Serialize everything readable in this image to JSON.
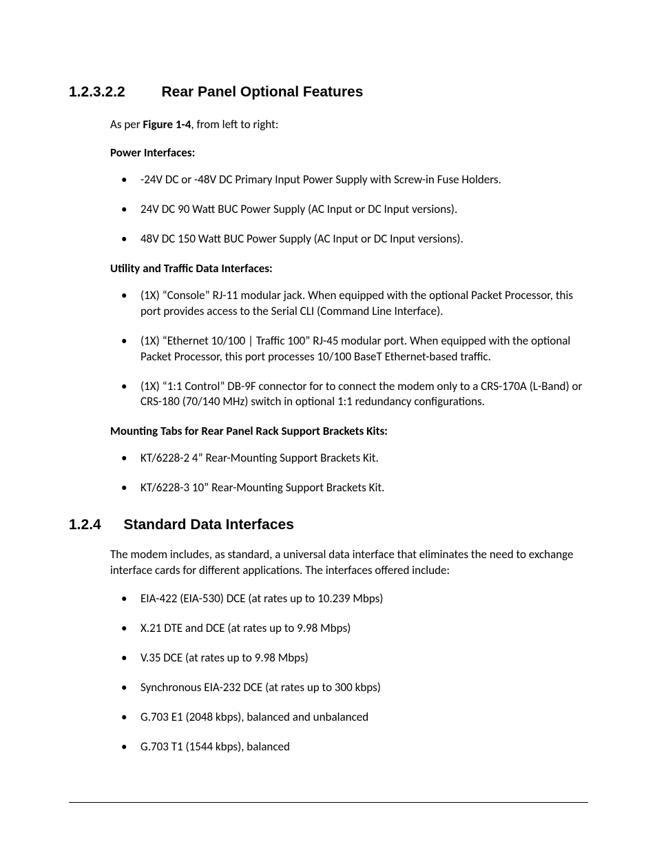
{
  "section1": {
    "number": "1.2.3.2.2",
    "title": "Rear Panel Optional Features",
    "intro_pre": "As per ",
    "intro_bold": "Figure 1-4",
    "intro_post": ", from left to right:",
    "sub1": {
      "heading": "Power Interfaces:",
      "items": [
        "-24V DC or -48V DC Primary Input Power Supply with Screw-in Fuse Holders.",
        "24V DC 90 Watt BUC Power Supply (AC Input or DC Input versions).",
        "48V DC 150 Watt BUC Power Supply (AC Input or DC Input versions)."
      ]
    },
    "sub2": {
      "heading": "Utility and Traffic Data Interfaces:",
      "items": [
        "(1X) “Console” RJ-11 modular jack. When equipped with the optional Packet Processor, this port provides access to the Serial CLI (Command Line Interface).",
        "(1X) “Ethernet 10/100 | Traffic 100” RJ-45 modular port. When equipped with the optional Packet Processor, this port processes 10/100 BaseT Ethernet-based traffic.",
        "(1X) “1:1 Control”  DB-9F connector for to connect the modem only to a CRS-170A (L-Band) or CRS-180 (70/140 MHz) switch in optional 1:1 redundancy configurations."
      ]
    },
    "sub3": {
      "heading": "Mounting Tabs for Rear Panel Rack Support Brackets Kits:",
      "items": [
        "KT/6228-2 4” Rear-Mounting Support Brackets Kit.",
        "KT/6228-3 10” Rear-Mounting Support Brackets Kit."
      ]
    }
  },
  "section2": {
    "number": "1.2.4",
    "title": "Standard Data Interfaces",
    "intro": "The modem includes, as standard, a universal data interface that eliminates the need to exchange interface cards for different applications. The interfaces offered include:",
    "items": [
      "EIA-422 (EIA-530) DCE (at rates up to 10.239 Mbps)",
      "X.21 DTE and DCE (at rates up to 9.98 Mbps)",
      "V.35 DCE (at rates up to 9.98 Mbps)",
      "Synchronous EIA-232 DCE (at rates up to 300 kbps)",
      "G.703 E1 (2048 kbps), balanced and unbalanced",
      "G.703 T1 (1544 kbps), balanced"
    ]
  }
}
